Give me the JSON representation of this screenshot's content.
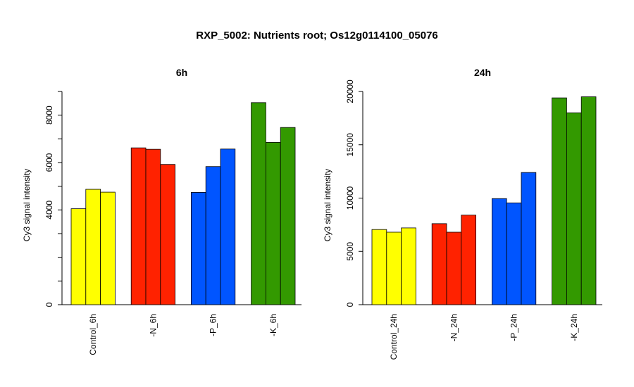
{
  "title": "RXP_5002: Nutrients root; Os12g0114100_05076",
  "chart_data": [
    {
      "type": "bar",
      "title": "6h",
      "ylabel": "Cy3 signal intensity",
      "ylim": [
        0,
        9000
      ],
      "y_ticks": [
        0,
        4000,
        6000,
        8000
      ],
      "y_tick_marks": [
        0,
        1000,
        2000,
        3000,
        4000,
        5000,
        6000,
        7000,
        8000,
        9000
      ],
      "categories": [
        "Control_6h",
        "-N_6h",
        "-P_6h",
        "-K_6h"
      ],
      "colors": [
        "#ffff00",
        "#ff2200",
        "#0055ff",
        "#339900"
      ],
      "values": [
        [
          4050,
          4870,
          4750
        ],
        [
          6620,
          6560,
          5920
        ],
        [
          4740,
          5830,
          6570
        ],
        [
          8530,
          6850,
          7480
        ]
      ]
    },
    {
      "type": "bar",
      "title": "24h",
      "ylabel": "Cy3 signal intensity",
      "ylim": [
        0,
        20000
      ],
      "y_ticks": [
        0,
        5000,
        10000,
        15000,
        20000
      ],
      "y_tick_marks": [
        0,
        5000,
        10000,
        15000,
        20000
      ],
      "categories": [
        "Control_24h",
        "-N_24h",
        "-P_24h",
        "-K_24h"
      ],
      "colors": [
        "#ffff00",
        "#ff2200",
        "#0055ff",
        "#339900"
      ],
      "values": [
        [
          7050,
          6800,
          7200
        ],
        [
          7600,
          6800,
          8400
        ],
        [
          9950,
          9550,
          12400
        ],
        [
          19400,
          18000,
          19500
        ]
      ]
    }
  ]
}
